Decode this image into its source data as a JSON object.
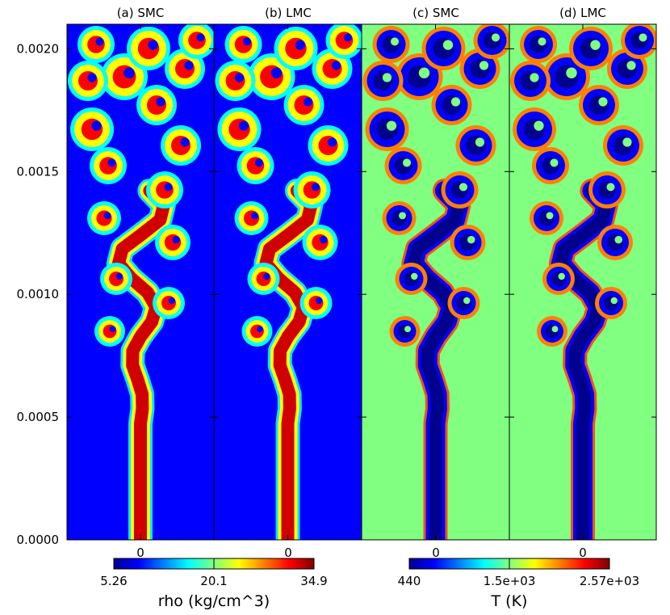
{
  "chart_data": {
    "type": "heatmap",
    "panels": [
      {
        "title": "(a) SMC",
        "field": "rho",
        "xtick": "0"
      },
      {
        "title": "(b) LMC",
        "field": "rho",
        "xtick": "0"
      },
      {
        "title": "(c) SMC",
        "field": "T",
        "xtick": "0"
      },
      {
        "title": "(d) LMC",
        "field": "T",
        "xtick": "0"
      }
    ],
    "y_axis": {
      "ticks": [
        "0.0000",
        "0.0005",
        "0.0010",
        "0.0015",
        "0.0020"
      ],
      "tick_values": [
        0.0,
        0.0005,
        0.001,
        0.0015,
        0.002
      ],
      "ylim": [
        0.0,
        0.0021
      ]
    },
    "colorbars": [
      {
        "label": "rho (kg/cm^3)",
        "min": 5.26,
        "mid": 20.1,
        "max": 34.9,
        "tick_labels": [
          "5.26",
          "20.1",
          "34.9"
        ]
      },
      {
        "label": "T (K)",
        "min": 440,
        "mid": 1500,
        "max": 2570,
        "tick_labels": [
          "440",
          "1.5e+03",
          "2.57e+03"
        ]
      }
    ],
    "colormap": "jet",
    "colors": {
      "low": "#00008f",
      "background_T": "#80ff80",
      "high": "#800000"
    }
  }
}
